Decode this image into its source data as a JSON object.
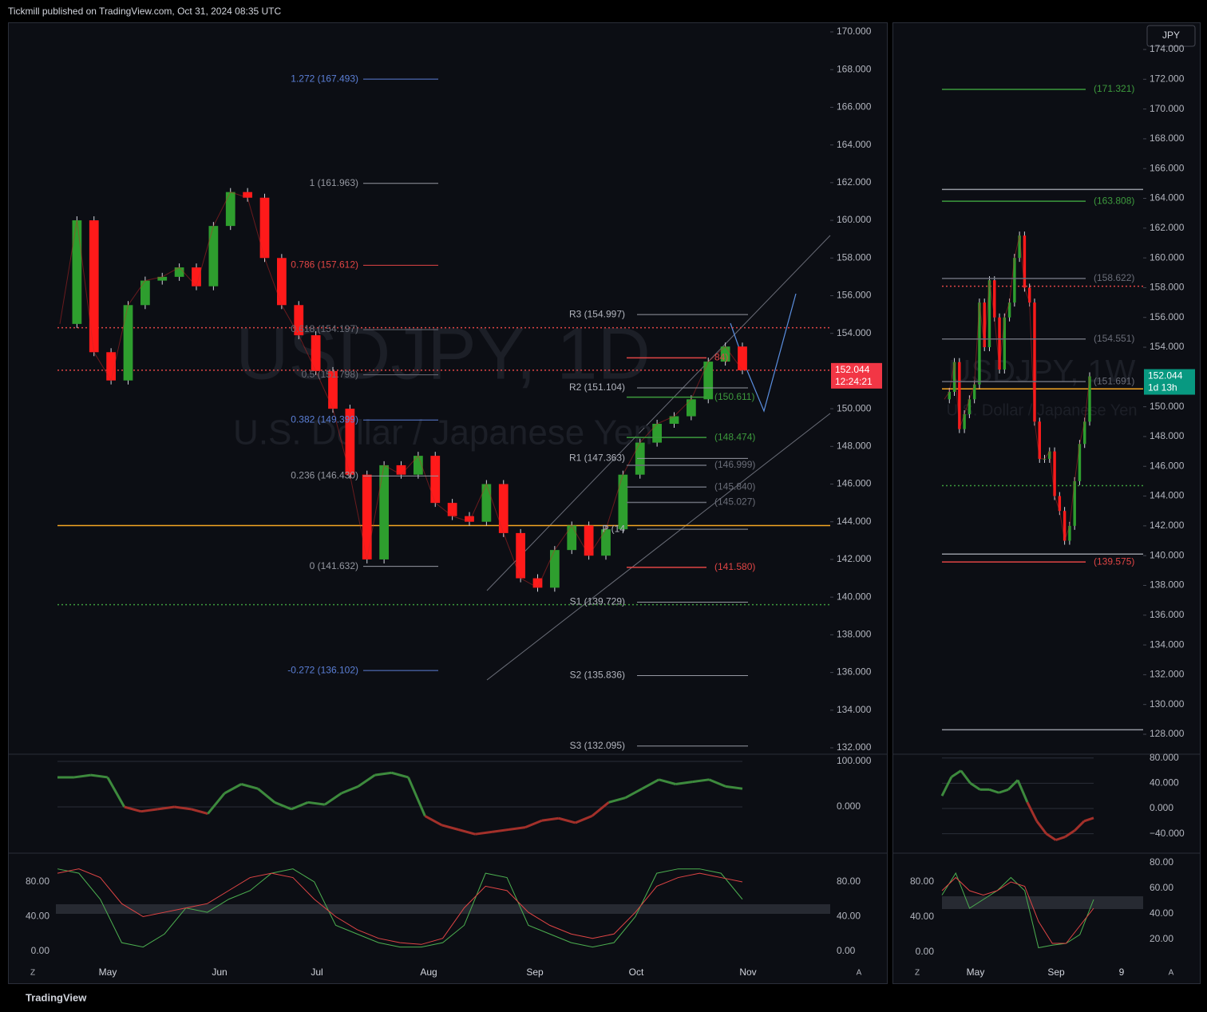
{
  "header": {
    "text": "Tickmill published on TradingView.com, Oct 31, 2024 08:35 UTC"
  },
  "footer": {
    "brand": "TradingView"
  },
  "daily": {
    "watermark_symbol": "USDJPY, 1D",
    "watermark_name": "U.S. Dollar / Japanese Yen",
    "price_ticks": [
      {
        "value": 170,
        "label": "170.000"
      },
      {
        "value": 168,
        "label": "168.000"
      },
      {
        "value": 166,
        "label": "166.000"
      },
      {
        "value": 164,
        "label": "164.000"
      },
      {
        "value": 162,
        "label": "162.000"
      },
      {
        "value": 160,
        "label": "160.000"
      },
      {
        "value": 158,
        "label": "158.000"
      },
      {
        "value": 156,
        "label": "156.000"
      },
      {
        "value": 154,
        "label": "154.000"
      },
      {
        "value": 150,
        "label": "150.000"
      },
      {
        "value": 148,
        "label": "148.000"
      },
      {
        "value": 146,
        "label": "146.000"
      },
      {
        "value": 144,
        "label": "144.000"
      },
      {
        "value": 142,
        "label": "142.000"
      },
      {
        "value": 140,
        "label": "140.000"
      },
      {
        "value": 138,
        "label": "138.000"
      },
      {
        "value": 136,
        "label": "136.000"
      },
      {
        "value": 134,
        "label": "134.000"
      },
      {
        "value": 132,
        "label": "132.000"
      }
    ],
    "current_price": {
      "value": 152.044,
      "label": "152.044"
    },
    "countdown": "12:24:21",
    "months": [
      "May",
      "Jun",
      "Jul",
      "Aug",
      "Sep",
      "Oct",
      "Nov"
    ],
    "fib_levels": [
      {
        "label": "1.272 (167.493)",
        "price": 167.493,
        "color": "#5b7fd6"
      },
      {
        "label": "1 (161.963)",
        "price": 161.963,
        "color": "#9598a1"
      },
      {
        "label": "0.786 (157.612)",
        "price": 157.612,
        "color": "#e04545"
      },
      {
        "label": "0.618 (154.197)",
        "price": 154.197,
        "color": "#6a6d78"
      },
      {
        "label": "0.5 (151.798)",
        "price": 151.798,
        "color": "#6a6d78"
      },
      {
        "label": "0.382 (149.399)",
        "price": 149.399,
        "color": "#5b7fd6"
      },
      {
        "label": "0.236 (146.430)",
        "price": 146.43,
        "color": "#9598a1"
      },
      {
        "label": "0 (141.632)",
        "price": 141.632,
        "color": "#9598a1"
      },
      {
        "label": "-0.272 (136.102)",
        "price": 136.102,
        "color": "#5b7fd6"
      }
    ],
    "pivots": [
      {
        "label": "R3 (154.997)",
        "price": 154.997
      },
      {
        "label": "R2 (151.104)",
        "price": 151.104
      },
      {
        "label": "R1 (147.363)",
        "price": 147.363
      },
      {
        "label": "P (14",
        "price": 143.6
      },
      {
        "label": "S1 (139.729)",
        "price": 139.729
      },
      {
        "label": "S2 (135.836)",
        "price": 135.836
      },
      {
        "label": "S3 (132.095)",
        "price": 132.095
      }
    ],
    "side_levels": [
      {
        "label": "84)",
        "price": 152.7,
        "color": "#e04545"
      },
      {
        "label": "(150.611)",
        "price": 150.611,
        "color": "#3d9a3d"
      },
      {
        "label": "(148.474)",
        "price": 148.474,
        "color": "#3d9a3d"
      },
      {
        "label": "(146.999)",
        "price": 146.999,
        "color": "#6a6d78"
      },
      {
        "label": "(145.840)",
        "price": 145.84,
        "color": "#6a6d78"
      },
      {
        "label": "(145.027)",
        "price": 145.027,
        "color": "#6a6d78"
      },
      {
        "label": "(141.580)",
        "price": 141.58,
        "color": "#e04545"
      }
    ],
    "lines": [
      {
        "price": 154.3,
        "color": "#e04545",
        "dash": true
      },
      {
        "price": 152.044,
        "color": "#e04545",
        "dash": true
      },
      {
        "price": 143.8,
        "color": "#f5a623",
        "dash": false
      },
      {
        "price": 139.6,
        "color": "#3d9a3d",
        "dash": true
      }
    ],
    "closes": [
      154.5,
      160,
      153,
      151.5,
      155.5,
      156.8,
      157,
      157.5,
      156.5,
      159.7,
      161.5,
      161.2,
      158,
      155.5,
      153.9,
      152,
      150,
      146.5,
      142,
      147,
      146.5,
      147.5,
      145,
      144.3,
      144,
      146,
      143.4,
      141,
      140.5,
      142.5,
      143.8,
      142.2,
      143.6,
      146.5,
      148.2,
      149.2,
      149.6,
      150.5,
      152.5,
      153.3,
      152.044
    ],
    "cci_ticks": [
      {
        "value": 100,
        "label": "100.000"
      },
      {
        "value": 0,
        "label": "0.000"
      }
    ],
    "cci": [
      65,
      65,
      70,
      65,
      0,
      -10,
      -5,
      0,
      -5,
      -15,
      30,
      50,
      40,
      10,
      -5,
      10,
      5,
      30,
      45,
      70,
      75,
      65,
      -20,
      -40,
      -50,
      -60,
      -55,
      -50,
      -45,
      -30,
      -25,
      -35,
      -20,
      10,
      20,
      40,
      60,
      50,
      55,
      60,
      45,
      40
    ],
    "stoch_ticks": [
      {
        "value": 80,
        "label": "80.00"
      },
      {
        "value": 40,
        "label": "40.00"
      },
      {
        "value": 0,
        "label": "0.00"
      }
    ],
    "stoch_k": [
      95,
      90,
      60,
      10,
      5,
      20,
      50,
      45,
      60,
      70,
      90,
      95,
      80,
      30,
      20,
      10,
      5,
      5,
      10,
      30,
      90,
      85,
      30,
      20,
      10,
      5,
      10,
      40,
      90,
      95,
      95,
      90,
      60
    ],
    "stoch_d": [
      90,
      95,
      85,
      55,
      40,
      45,
      50,
      55,
      70,
      85,
      90,
      85,
      60,
      40,
      25,
      15,
      10,
      8,
      15,
      50,
      75,
      70,
      45,
      30,
      20,
      15,
      20,
      45,
      75,
      85,
      90,
      85,
      80
    ]
  },
  "weekly": {
    "currency_button": "JPY",
    "watermark_symbol": "USDJPY, 1W",
    "watermark_name": "U.S. Dollar / Japanese Yen",
    "price_ticks": [
      {
        "value": 174,
        "label": "174.000"
      },
      {
        "value": 172,
        "label": "172.000"
      },
      {
        "value": 170,
        "label": "170.000"
      },
      {
        "value": 168,
        "label": "168.000"
      },
      {
        "value": 166,
        "label": "166.000"
      },
      {
        "value": 164,
        "label": "164.000"
      },
      {
        "value": 162,
        "label": "162.000"
      },
      {
        "value": 160,
        "label": "160.000"
      },
      {
        "value": 158,
        "label": "158.000"
      },
      {
        "value": 156,
        "label": "156.000"
      },
      {
        "value": 154,
        "label": "154.000"
      },
      {
        "value": 150,
        "label": "150.000"
      },
      {
        "value": 148,
        "label": "148.000"
      },
      {
        "value": 146,
        "label": "146.000"
      },
      {
        "value": 144,
        "label": "144.000"
      },
      {
        "value": 142,
        "label": "142.000"
      },
      {
        "value": 140,
        "label": "140.000"
      },
      {
        "value": 138,
        "label": "138.000"
      },
      {
        "value": 136,
        "label": "136.000"
      },
      {
        "value": 134,
        "label": "134.000"
      },
      {
        "value": 132,
        "label": "132.000"
      },
      {
        "value": 130,
        "label": "130.000"
      },
      {
        "value": 128,
        "label": "128.000"
      }
    ],
    "current_price": {
      "value": 152.044,
      "label": "152.044"
    },
    "countdown": "1d 13h",
    "months": [
      "May",
      "Sep",
      "9"
    ],
    "side_levels": [
      {
        "label": "(171.321)",
        "price": 171.321,
        "color": "#3d9a3d"
      },
      {
        "label": "(163.808)",
        "price": 163.808,
        "color": "#3d9a3d"
      },
      {
        "label": "(158.622)",
        "price": 158.622,
        "color": "#6a6d78"
      },
      {
        "label": "(154.551)",
        "price": 154.551,
        "color": "#6a6d78"
      },
      {
        "label": "(151.691)",
        "price": 151.691,
        "color": "#6a6d78"
      },
      {
        "label": "(139.575)",
        "price": 139.575,
        "color": "#e04545"
      }
    ],
    "lines": [
      {
        "price": 164.6,
        "color": "#9598a1",
        "dash": false
      },
      {
        "price": 158.1,
        "color": "#e04545",
        "dash": true
      },
      {
        "price": 151.2,
        "color": "#f5a623",
        "dash": false
      },
      {
        "price": 144.7,
        "color": "#3d9a3d",
        "dash": true
      },
      {
        "price": 140.1,
        "color": "#9598a1",
        "dash": false
      },
      {
        "price": 128.3,
        "color": "#9598a1",
        "dash": false
      }
    ],
    "closes": [
      150.5,
      151,
      153,
      148.5,
      149.5,
      150.5,
      151.5,
      157,
      154,
      158.5,
      156,
      152.5,
      156,
      157,
      160,
      161.5,
      158,
      157,
      149,
      146.5,
      146.5,
      147,
      144,
      143,
      141,
      142,
      145,
      147.5,
      149,
      152.044
    ],
    "cci_ticks": [
      {
        "value": 80,
        "label": "80.000"
      },
      {
        "value": 40,
        "label": "40.000"
      },
      {
        "value": 0,
        "label": "0.000"
      },
      {
        "value": -40,
        "label": "−40.000"
      }
    ],
    "cci": [
      20,
      50,
      60,
      40,
      30,
      30,
      25,
      30,
      45,
      10,
      -20,
      -40,
      -50,
      -45,
      -35,
      -20,
      -15
    ],
    "stoch_ticks": [
      {
        "value": 80,
        "label": "80.00"
      },
      {
        "value": 40,
        "label": "40.00"
      },
      {
        "value": 0,
        "label": "0.00"
      }
    ],
    "stoch_ticks_right": [
      {
        "value": 80,
        "label": "80.00"
      },
      {
        "value": 60,
        "label": "60.00"
      },
      {
        "value": 40,
        "label": "40.00"
      },
      {
        "value": 20,
        "label": "20.00"
      }
    ],
    "stoch_k": [
      65,
      90,
      50,
      60,
      70,
      85,
      70,
      5,
      8,
      10,
      20,
      60
    ],
    "stoch_d": [
      70,
      85,
      70,
      65,
      70,
      80,
      75,
      35,
      10,
      10,
      30,
      50
    ]
  },
  "scale_buttons": [
    "Z",
    "A"
  ]
}
